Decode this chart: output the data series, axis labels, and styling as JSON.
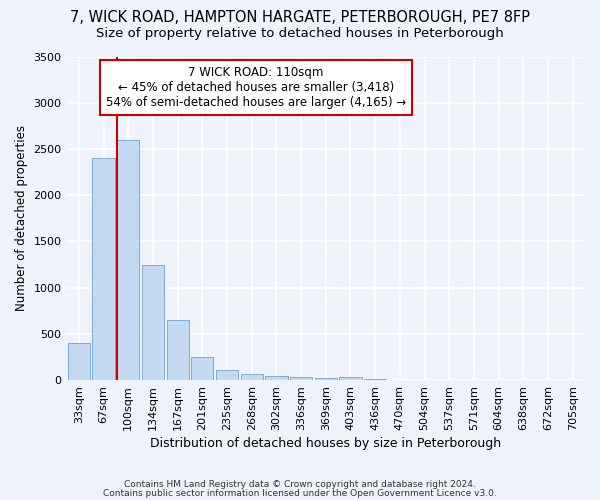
{
  "title1": "7, WICK ROAD, HAMPTON HARGATE, PETERBOROUGH, PE7 8FP",
  "title2": "Size of property relative to detached houses in Peterborough",
  "xlabel": "Distribution of detached houses by size in Peterborough",
  "ylabel": "Number of detached properties",
  "footnote1": "Contains HM Land Registry data © Crown copyright and database right 2024.",
  "footnote2": "Contains public sector information licensed under the Open Government Licence v3.0.",
  "categories": [
    "33sqm",
    "67sqm",
    "100sqm",
    "134sqm",
    "167sqm",
    "201sqm",
    "235sqm",
    "268sqm",
    "302sqm",
    "336sqm",
    "369sqm",
    "403sqm",
    "436sqm",
    "470sqm",
    "504sqm",
    "537sqm",
    "571sqm",
    "604sqm",
    "638sqm",
    "672sqm",
    "705sqm"
  ],
  "values": [
    400,
    2400,
    2600,
    1250,
    650,
    250,
    110,
    70,
    50,
    30,
    20,
    30,
    10,
    5,
    3,
    2,
    1,
    1,
    0,
    0,
    0
  ],
  "bar_color": "#c5d9f0",
  "bar_edge_color": "#7aadda",
  "line_color": "#cc0000",
  "line_x_index": 2,
  "annotation_line1": "7 WICK ROAD: 110sqm",
  "annotation_line2": "← 45% of detached houses are smaller (3,418)",
  "annotation_line3": "54% of semi-detached houses are larger (4,165) →",
  "ylim": [
    0,
    3500
  ],
  "yticks": [
    0,
    500,
    1000,
    1500,
    2000,
    2500,
    3000,
    3500
  ],
  "bg_color": "#eef2fa",
  "plot_bg_color": "#eef2fa",
  "grid_color": "white",
  "title1_fontsize": 10.5,
  "title2_fontsize": 9.5,
  "xlabel_fontsize": 9,
  "ylabel_fontsize": 8.5,
  "tick_fontsize": 8,
  "annot_fontsize": 8.5,
  "footnote_fontsize": 6.5
}
